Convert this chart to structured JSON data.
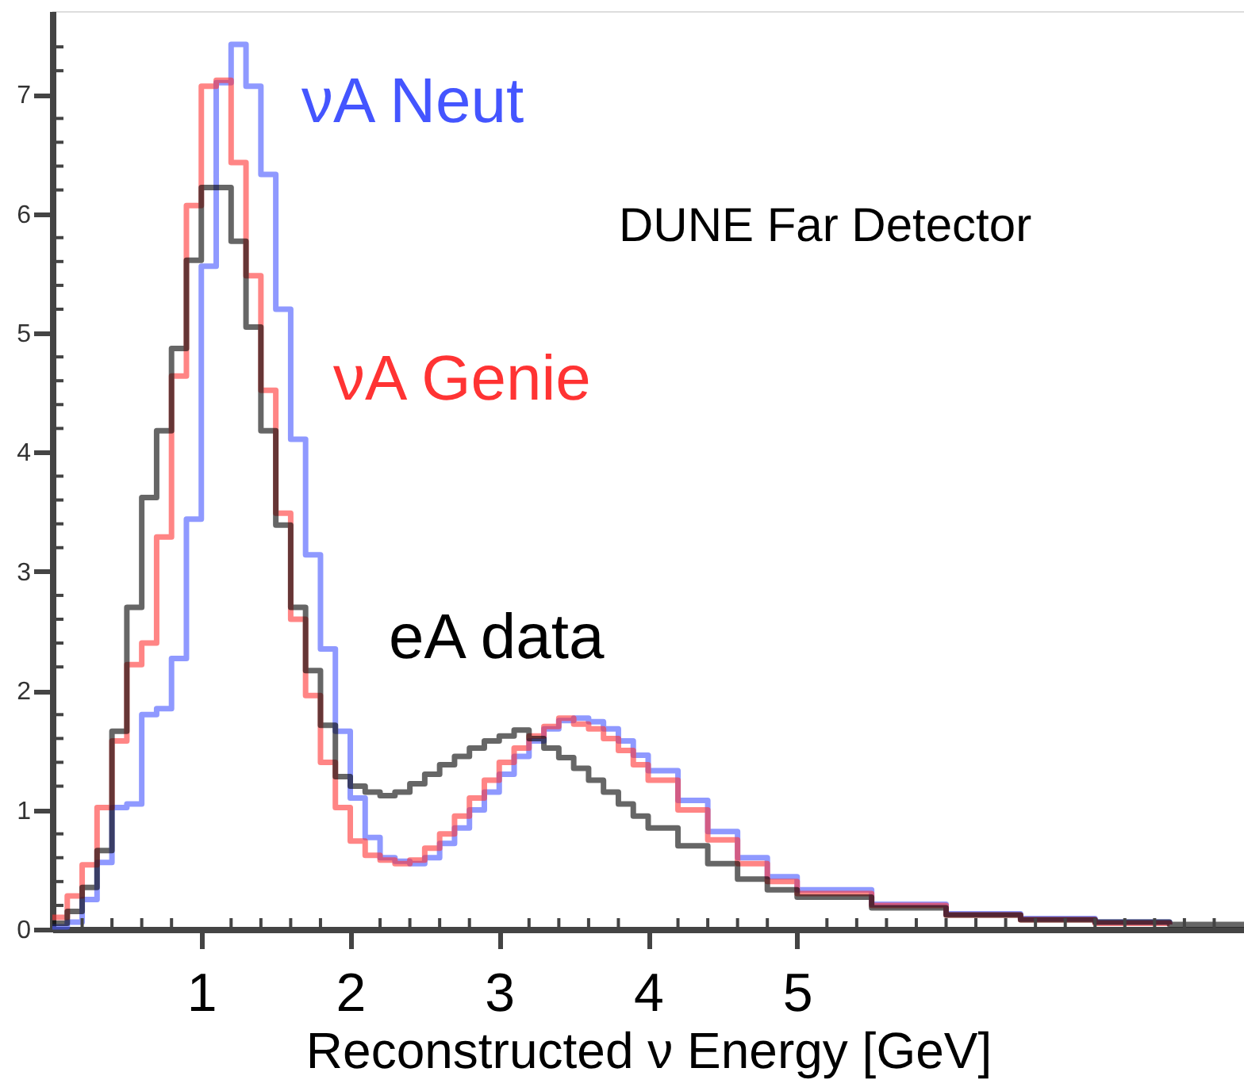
{
  "chart_data": {
    "type": "step",
    "xlabel": "Reconstructed ν Energy [GeV]",
    "annotations": [
      "DUNE Far Detector"
    ],
    "x": [
      0,
      0.1,
      0.2,
      0.3,
      0.4,
      0.5,
      0.6,
      0.7,
      0.8,
      0.9,
      1.0,
      1.1,
      1.2,
      1.3,
      1.4,
      1.5,
      1.6,
      1.7,
      1.8,
      1.9,
      2.0,
      2.1,
      2.2,
      2.3,
      2.4,
      2.5,
      2.6,
      2.7,
      2.8,
      2.9,
      3.0,
      3.1,
      3.2,
      3.3,
      3.4,
      3.5,
      3.6,
      3.7,
      3.8,
      3.9,
      4.0,
      4.2,
      4.4,
      4.6,
      4.8,
      5.0,
      5.5,
      6.0,
      6.5,
      7.0,
      7.5,
      8.0
    ],
    "series": [
      {
        "name": "νA Neut",
        "color": "#4455ff",
        "values": [
          0.02,
          0.06,
          0.25,
          0.56,
          1.02,
          1.05,
          1.8,
          1.85,
          2.27,
          3.44,
          5.56,
          7.1,
          7.42,
          7.07,
          6.33,
          5.2,
          4.11,
          3.14,
          2.35,
          1.66,
          1.1,
          0.77,
          0.6,
          0.57,
          0.55,
          0.6,
          0.72,
          0.85,
          1.0,
          1.15,
          1.3,
          1.45,
          1.58,
          1.68,
          1.75,
          1.77,
          1.74,
          1.68,
          1.58,
          1.46,
          1.33,
          1.08,
          0.82,
          0.6,
          0.44,
          0.33,
          0.21,
          0.13,
          0.09,
          0.06,
          0.04,
          null
        ]
      },
      {
        "name": "νA Genie",
        "color": "#ff3333",
        "values": [
          0.1,
          0.28,
          0.54,
          1.02,
          1.58,
          2.22,
          2.4,
          3.29,
          4.64,
          6.07,
          7.07,
          7.12,
          6.43,
          5.48,
          4.52,
          3.49,
          2.6,
          1.96,
          1.4,
          1.02,
          0.74,
          0.62,
          0.58,
          0.55,
          0.58,
          0.68,
          0.8,
          0.95,
          1.1,
          1.25,
          1.4,
          1.52,
          1.62,
          1.7,
          1.77,
          1.72,
          1.68,
          1.6,
          1.5,
          1.38,
          1.25,
          1.0,
          0.75,
          0.55,
          0.4,
          0.3,
          0.2,
          0.12,
          0.08,
          0.05,
          0.04,
          null
        ]
      },
      {
        "name": "eA data",
        "color": "#000000",
        "values": [
          0.05,
          0.15,
          0.35,
          0.66,
          1.66,
          2.7,
          3.62,
          4.18,
          4.87,
          5.61,
          6.22,
          6.22,
          5.77,
          5.05,
          4.18,
          3.39,
          2.7,
          2.17,
          1.71,
          1.28,
          1.2,
          1.15,
          1.12,
          1.15,
          1.22,
          1.3,
          1.38,
          1.45,
          1.52,
          1.58,
          1.62,
          1.67,
          1.6,
          1.52,
          1.44,
          1.35,
          1.25,
          1.15,
          1.05,
          0.95,
          0.85,
          0.7,
          0.55,
          0.42,
          0.33,
          0.27,
          0.18,
          0.12,
          0.08,
          0.06,
          0.04,
          0.03
        ]
      }
    ],
    "xlim": [
      0,
      8
    ],
    "xticks": [
      {
        "value": 0.2,
        "label": null
      },
      {
        "value": 0.4,
        "label": null
      },
      {
        "value": 0.6,
        "label": null
      },
      {
        "value": 0.8,
        "label": null
      },
      1,
      {
        "value": 1.2,
        "label": null
      },
      {
        "value": 1.4,
        "label": null
      },
      {
        "value": 1.6,
        "label": null
      },
      {
        "value": 1.8,
        "label": null
      },
      2,
      {
        "value": 2.2,
        "label": null
      },
      {
        "value": 2.4,
        "label": null
      },
      {
        "value": 2.6,
        "label": null
      },
      {
        "value": 2.8,
        "label": null
      },
      3,
      {
        "value": 3.2,
        "label": null
      },
      {
        "value": 3.4,
        "label": null
      },
      {
        "value": 3.6,
        "label": null
      },
      {
        "value": 3.8,
        "label": null
      },
      4,
      {
        "value": 4.2,
        "label": null
      },
      {
        "value": 4.4,
        "label": null
      },
      {
        "value": 4.6,
        "label": null
      },
      {
        "value": 4.8,
        "label": null
      },
      5,
      {
        "value": 5.2,
        "label": null
      },
      {
        "value": 5.4,
        "label": null
      },
      {
        "value": 5.6,
        "label": null
      },
      {
        "value": 5.8,
        "label": null
      },
      {
        "value": 6,
        "label": null
      },
      {
        "value": 6.2,
        "label": null
      },
      {
        "value": 6.4,
        "label": null
      },
      {
        "value": 6.6,
        "label": null
      },
      {
        "value": 6.8,
        "label": null
      },
      {
        "value": 7,
        "label": null
      },
      {
        "value": 7.2,
        "label": null
      },
      {
        "value": 7.4,
        "label": null
      },
      {
        "value": 7.6,
        "label": null
      },
      {
        "value": 7.8,
        "label": null
      }
    ],
    "ylim": [
      0,
      7.7
    ],
    "yticks": [
      0,
      {
        "value": 0.2,
        "label": null
      },
      {
        "value": 0.4,
        "label": null
      },
      {
        "value": 0.6,
        "label": null
      },
      {
        "value": 0.8,
        "label": null
      },
      1,
      {
        "value": 1.2,
        "label": null
      },
      {
        "value": 1.4,
        "label": null
      },
      {
        "value": 1.6,
        "label": null
      },
      {
        "value": 1.8,
        "label": null
      },
      2,
      {
        "value": 2.2,
        "label": null
      },
      {
        "value": 2.4,
        "label": null
      },
      {
        "value": 2.6,
        "label": null
      },
      {
        "value": 2.8,
        "label": null
      },
      3,
      {
        "value": 3.2,
        "label": null
      },
      {
        "value": 3.4,
        "label": null
      },
      {
        "value": 3.6,
        "label": null
      },
      {
        "value": 3.8,
        "label": null
      },
      4,
      {
        "value": 4.2,
        "label": null
      },
      {
        "value": 4.4,
        "label": null
      },
      {
        "value": 4.6,
        "label": null
      },
      {
        "value": 4.8,
        "label": null
      },
      5,
      {
        "value": 5.2,
        "label": null
      },
      {
        "value": 5.4,
        "label": null
      },
      {
        "value": 5.6,
        "label": null
      },
      {
        "value": 5.8,
        "label": null
      },
      6,
      {
        "value": 6.2,
        "label": null
      },
      {
        "value": 6.4,
        "label": null
      },
      {
        "value": 6.6,
        "label": null
      },
      {
        "value": 6.8,
        "label": null
      },
      7,
      {
        "value": 7.2,
        "label": null
      },
      {
        "value": 7.4,
        "label": null
      }
    ],
    "grid": false
  }
}
